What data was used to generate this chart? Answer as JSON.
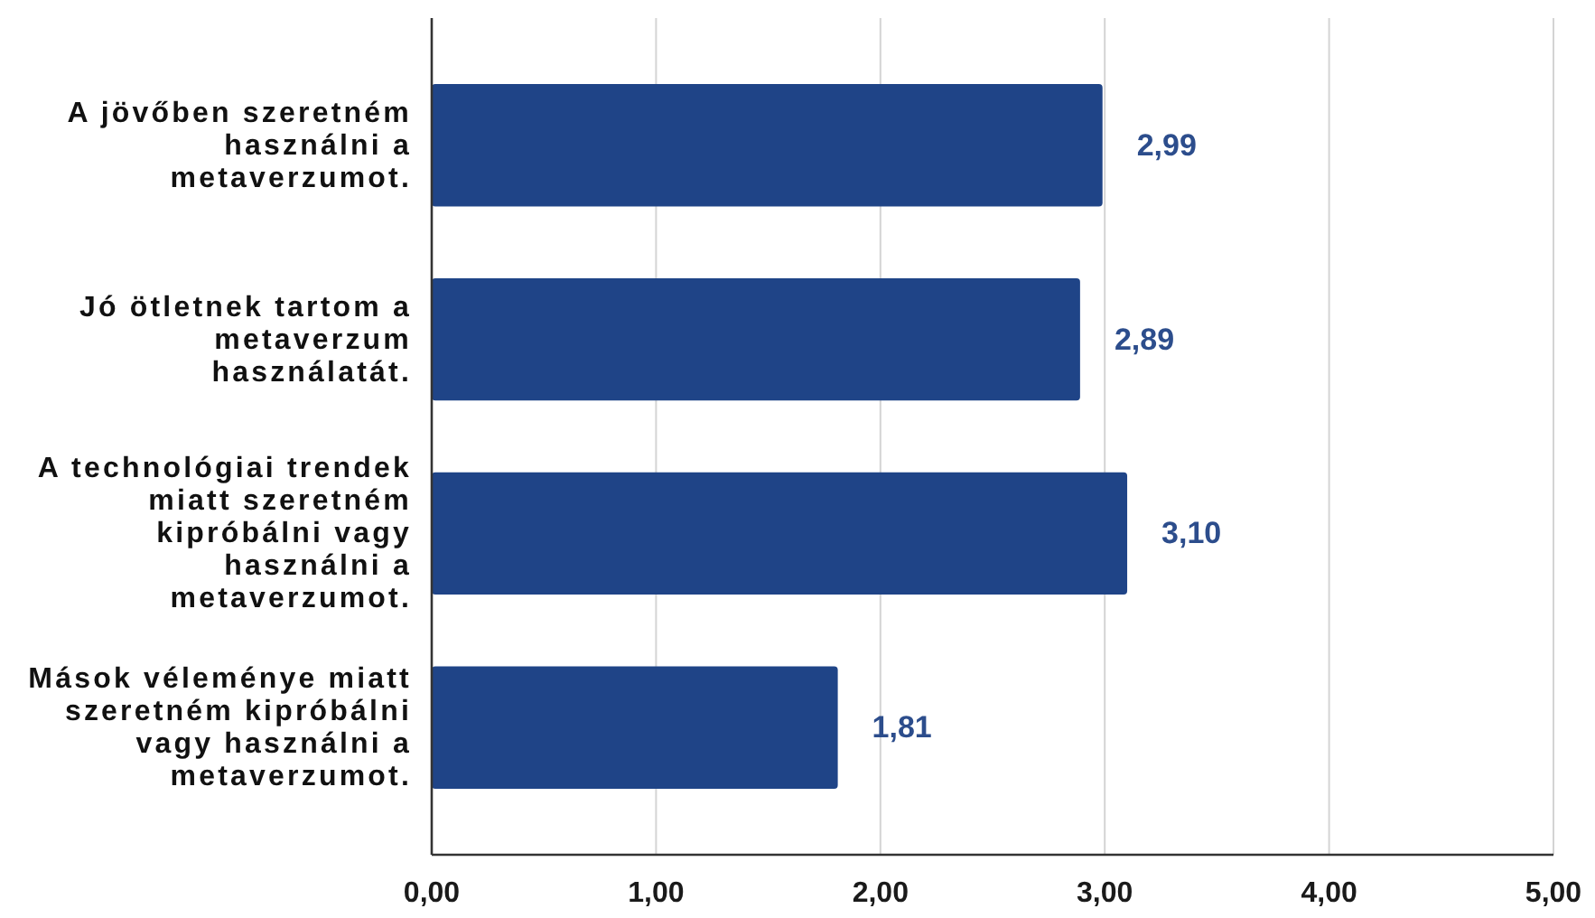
{
  "chart_data": {
    "type": "bar",
    "orientation": "horizontal",
    "categories": [
      "A jövőben szeretném használni a metaverzumot.",
      "Jó ötletnek tartom a metaverzum használatát.",
      "A technológiai trendek miatt szeretném kipróbálni vagy használni a metaverzumot.",
      "Mások véleménye miatt szeretném kipróbálni vagy használni a metaverzumot."
    ],
    "values": [
      2.99,
      2.89,
      3.1,
      1.81
    ],
    "color": "#1f4487",
    "value_labels": [
      "2,99",
      "2,89",
      "3,10",
      "1,81"
    ],
    "xlim": [
      0,
      5
    ],
    "xticks": [
      {
        "value": 0,
        "label": "0,00"
      },
      {
        "value": 1,
        "label": "1,00"
      },
      {
        "value": 2,
        "label": "2,00"
      },
      {
        "value": 3,
        "label": "3,00"
      },
      {
        "value": 4,
        "label": "4,00"
      },
      {
        "value": 5,
        "label": "5,00"
      }
    ],
    "grid": "x"
  }
}
